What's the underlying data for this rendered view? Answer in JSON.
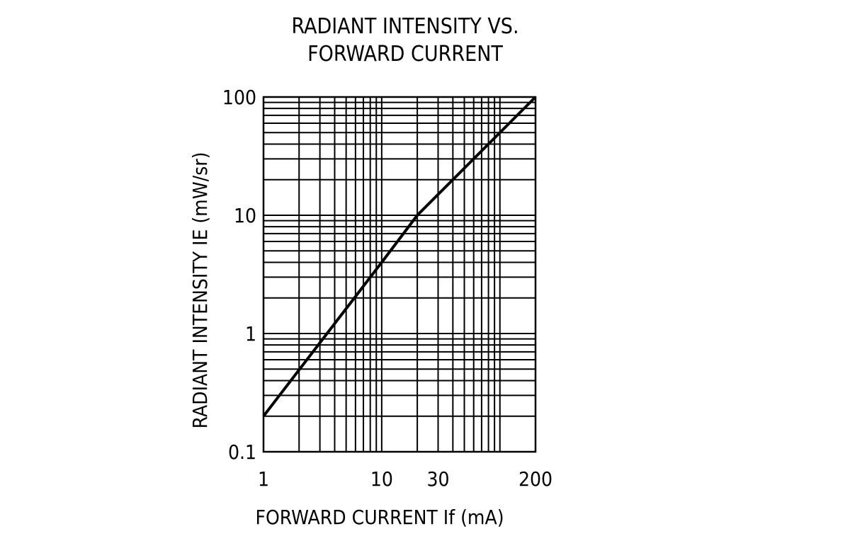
{
  "chart_data": {
    "type": "line",
    "title_lines": [
      "RADIANT INTENSITY VS.",
      "FORWARD CURRENT"
    ],
    "xlabel": "FORWARD CURRENT If (mA)",
    "ylabel": "RADIANT INTENSITY IE (mW/sr)",
    "xscale": "log",
    "yscale": "log",
    "xlim": [
      1,
      200
    ],
    "ylim": [
      0.1,
      100
    ],
    "xticks": [
      {
        "value": 1,
        "label": "1"
      },
      {
        "value": 10,
        "label": "10"
      },
      {
        "value": 30,
        "label": "30"
      },
      {
        "value": 200,
        "label": "200"
      }
    ],
    "yticks": [
      {
        "value": 0.1,
        "label": "0.1"
      },
      {
        "value": 1,
        "label": "1"
      },
      {
        "value": 10,
        "label": "10"
      },
      {
        "value": 100,
        "label": "100"
      }
    ],
    "x_grid": [
      2,
      3,
      4,
      5,
      6,
      7,
      8,
      9,
      10,
      20,
      30,
      40,
      50,
      60,
      70,
      80,
      90,
      100
    ],
    "y_grid": [
      0.2,
      0.3,
      0.4,
      0.5,
      0.6,
      0.7,
      0.8,
      0.9,
      1,
      2,
      3,
      4,
      5,
      6,
      7,
      8,
      9,
      10,
      20,
      30,
      40,
      50,
      60,
      70,
      80,
      90
    ],
    "grid": true,
    "series": [
      {
        "x": [
          1,
          10,
          20,
          200
        ],
        "y": [
          0.2,
          4,
          10,
          100
        ]
      }
    ]
  }
}
